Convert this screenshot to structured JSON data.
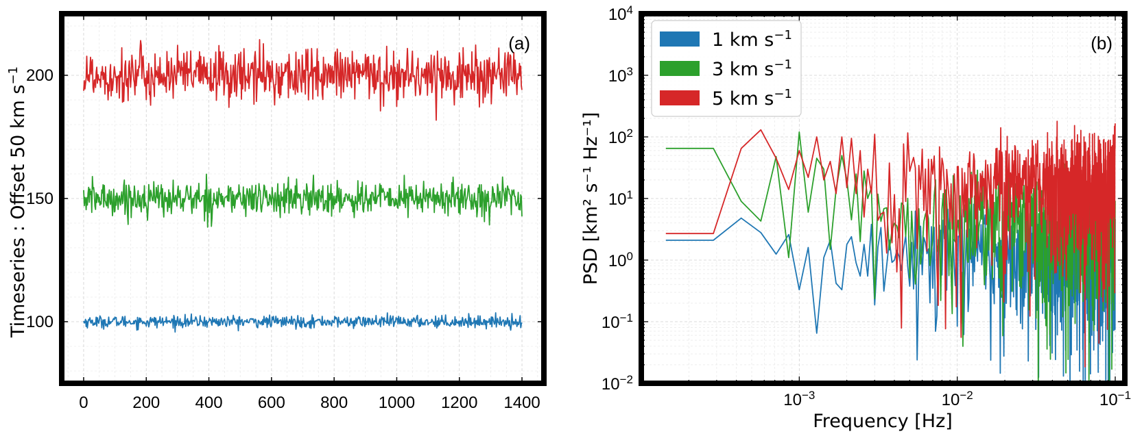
{
  "chart_data": [
    {
      "type": "line",
      "panel_label": "(a)",
      "xlabel": "",
      "ylabel_main": "Timeseries : Offset 50 km s",
      "ylabel_sup": "−1",
      "xlim": [
        -70,
        1470
      ],
      "ylim": [
        75,
        225
      ],
      "x_ticks": [
        0,
        200,
        400,
        600,
        800,
        1000,
        1200,
        1400
      ],
      "x_tick_labels": [
        "0",
        "200",
        "400",
        "600",
        "800",
        "1000",
        "1200",
        "1400"
      ],
      "y_ticks": [
        100,
        150,
        200
      ],
      "y_tick_labels": [
        "100",
        "150",
        "200"
      ],
      "grid": true,
      "series": [
        {
          "color": "#1f77b4",
          "mean": 100,
          "spread": 1.2,
          "n_points": 1400,
          "x_range": [
            0,
            1400
          ]
        },
        {
          "color": "#2ca02c",
          "mean": 150,
          "spread": 3.5,
          "n_points": 1400,
          "x_range": [
            0,
            1400
          ]
        },
        {
          "color": "#d62728",
          "mean": 200,
          "spread": 5.5,
          "n_points": 1400,
          "x_range": [
            0,
            1400
          ]
        }
      ]
    },
    {
      "type": "line",
      "panel_label": "(b)",
      "xlabel": "Frequency [Hz]",
      "ylabel": "PSD [km² s⁻¹ Hz⁻¹]",
      "x_scale": "log",
      "y_scale": "log",
      "xlim": [
        0.0001,
        0.115
      ],
      "ylim": [
        0.01,
        10000
      ],
      "x_tick_values": [
        0.001,
        0.01,
        0.1
      ],
      "x_tick_labels": [
        {
          "base": "10",
          "exp": "−3"
        },
        {
          "base": "10",
          "exp": "−2"
        },
        {
          "base": "10",
          "exp": "−1"
        }
      ],
      "y_tick_values": [
        0.01,
        0.1,
        1,
        10,
        100,
        1000,
        10000
      ],
      "y_tick_labels": [
        {
          "base": "10",
          "exp": "−2"
        },
        {
          "base": "10",
          "exp": "−1"
        },
        {
          "base": "10",
          "exp": "0"
        },
        {
          "base": "10",
          "exp": "1"
        },
        {
          "base": "10",
          "exp": "2"
        },
        {
          "base": "10",
          "exp": "3"
        },
        {
          "base": "10",
          "exp": "4"
        }
      ],
      "grid": true,
      "legend_position": "top-left",
      "legend": [
        {
          "label": "1 km s",
          "sup": "−1",
          "color": "#1f77b4"
        },
        {
          "label": "3 km s",
          "sup": "−1",
          "color": "#2ca02c"
        },
        {
          "label": "5 km s",
          "sup": "−1",
          "color": "#d62728"
        }
      ],
      "series": [
        {
          "color": "#1f77b4",
          "level": 2,
          "f_min": 0.000143,
          "f_max": 0.1,
          "x": [
            0.000143,
            0.000286,
            0.000429,
            0.000571,
            0.000714,
            0.000857,
            0.001,
            0.00114,
            0.00129,
            0.00143,
            0.00157,
            0.00171,
            0.00186,
            0.002,
            0.00214,
            0.00229,
            0.00243,
            0.00257,
            0.00271,
            0.00286
          ],
          "y": [
            2.1,
            2.1,
            4.8,
            2.8,
            1.25,
            2.6,
            0.33,
            1.6,
            0.065,
            1.1,
            2.1,
            0.42,
            0.33,
            1.8,
            2.4,
            0.9,
            0.55,
            1.8,
            0.55,
            3.8
          ]
        },
        {
          "color": "#2ca02c",
          "level": 6,
          "f_min": 0.000143,
          "f_max": 0.1,
          "x": [
            0.000143,
            0.000286,
            0.000429,
            0.000571,
            0.000714,
            0.000857,
            0.001,
            0.00114,
            0.00129,
            0.00143,
            0.00157,
            0.00171,
            0.00186,
            0.002,
            0.00214,
            0.00229,
            0.00243,
            0.00257,
            0.00271,
            0.00286
          ],
          "y": [
            65,
            65,
            9,
            4.3,
            48,
            1.1,
            120,
            6,
            45,
            30,
            1.5,
            14,
            50,
            20,
            4.5,
            25,
            2,
            28,
            10,
            15
          ]
        },
        {
          "color": "#d62728",
          "level": 25,
          "f_min": 0.000143,
          "f_max": 0.1,
          "x": [
            0.000143,
            0.000286,
            0.000429,
            0.000571,
            0.000714,
            0.000857,
            0.001,
            0.00114,
            0.00129,
            0.00143,
            0.00157,
            0.00171,
            0.00186,
            0.002,
            0.00214,
            0.00229,
            0.00243,
            0.00257,
            0.00271,
            0.00286
          ],
          "y": [
            2.7,
            2.7,
            65,
            130,
            45,
            14,
            60,
            22,
            100,
            20,
            40,
            12,
            100,
            15,
            95,
            12,
            60,
            5,
            30,
            12
          ]
        }
      ]
    }
  ]
}
